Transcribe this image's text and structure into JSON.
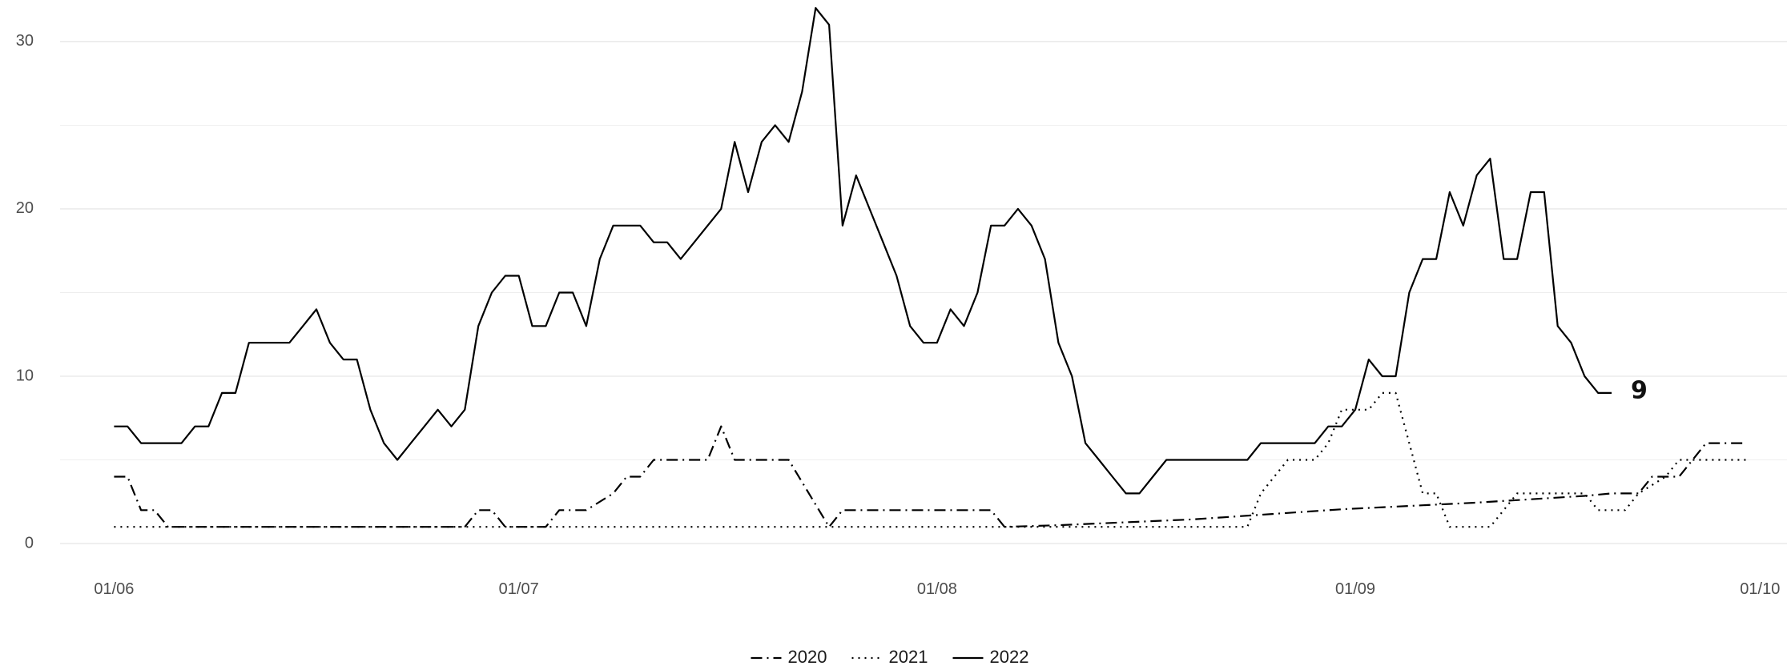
{
  "chart_data": {
    "type": "line",
    "title": "",
    "xlabel": "",
    "ylabel": "",
    "xlim": [
      "2022-05-28",
      "2022-10-03"
    ],
    "ylim": [
      -1,
      32
    ],
    "grid": true,
    "legend_position": "bottom",
    "x_ticks": [
      "2022-06-01",
      "2022-07-01",
      "2022-08-01",
      "2022-09-01",
      "2022-10-01"
    ],
    "x_tick_labels": [
      "01/06",
      "01/07",
      "01/08",
      "01/09",
      "01/10"
    ],
    "y_ticks": [
      0,
      10,
      20,
      30
    ],
    "y_tick_labels": [
      "0",
      "10",
      "20",
      "30"
    ],
    "end_label": {
      "text": "9",
      "date": "2022-09-20",
      "value": 9
    },
    "series": [
      {
        "name": "2020",
        "line_style": "dashdot",
        "color": "#000000",
        "points": [
          [
            "2022-06-01",
            4
          ],
          [
            "2022-06-02",
            4
          ],
          [
            "2022-06-03",
            2
          ],
          [
            "2022-06-04",
            2
          ],
          [
            "2022-06-05",
            1
          ],
          [
            "2022-06-27",
            1
          ],
          [
            "2022-06-28",
            2
          ],
          [
            "2022-06-29",
            2
          ],
          [
            "2022-06-30",
            1
          ],
          [
            "2022-07-03",
            1
          ],
          [
            "2022-07-04",
            2
          ],
          [
            "2022-07-06",
            2
          ],
          [
            "2022-07-08",
            3
          ],
          [
            "2022-07-09",
            4
          ],
          [
            "2022-07-10",
            4
          ],
          [
            "2022-07-11",
            5
          ],
          [
            "2022-07-15",
            5
          ],
          [
            "2022-07-16",
            7
          ],
          [
            "2022-07-17",
            5
          ],
          [
            "2022-07-21",
            5
          ],
          [
            "2022-07-24",
            1
          ],
          [
            "2022-07-25",
            2
          ],
          [
            "2022-08-05",
            2
          ],
          [
            "2022-08-06",
            1
          ],
          [
            "2022-08-10",
            1.1
          ],
          [
            "2022-08-20",
            1.45
          ],
          [
            "2022-08-31",
            2.05
          ],
          [
            "2022-09-10",
            2.45
          ],
          [
            "2022-09-18",
            2.85
          ],
          [
            "2022-09-20",
            3
          ],
          [
            "2022-09-22",
            3
          ],
          [
            "2022-09-23",
            4
          ],
          [
            "2022-09-24",
            4
          ],
          [
            "2022-09-25",
            4
          ],
          [
            "2022-09-26",
            5
          ],
          [
            "2022-09-27",
            6
          ],
          [
            "2022-09-30",
            6
          ]
        ]
      },
      {
        "name": "2021",
        "line_style": "dotted",
        "color": "#000000",
        "points": [
          [
            "2022-06-01",
            1
          ],
          [
            "2022-08-24",
            1
          ],
          [
            "2022-08-25",
            3
          ],
          [
            "2022-08-26",
            4
          ],
          [
            "2022-08-27",
            5
          ],
          [
            "2022-08-29",
            5
          ],
          [
            "2022-08-30",
            6
          ],
          [
            "2022-08-31",
            8
          ],
          [
            "2022-09-02",
            8
          ],
          [
            "2022-09-03",
            9
          ],
          [
            "2022-09-04",
            9
          ],
          [
            "2022-09-05",
            6
          ],
          [
            "2022-09-06",
            3
          ],
          [
            "2022-09-07",
            3
          ],
          [
            "2022-09-08",
            1
          ],
          [
            "2022-09-11",
            1
          ],
          [
            "2022-09-12",
            2
          ],
          [
            "2022-09-13",
            3
          ],
          [
            "2022-09-18",
            3
          ],
          [
            "2022-09-19",
            2
          ],
          [
            "2022-09-21",
            2
          ],
          [
            "2022-09-22",
            3
          ],
          [
            "2022-09-24",
            4
          ],
          [
            "2022-09-25",
            5
          ],
          [
            "2022-09-30",
            5
          ]
        ]
      },
      {
        "name": "2022",
        "line_style": "solid",
        "color": "#000000",
        "points": [
          [
            "2022-06-01",
            7
          ],
          [
            "2022-06-02",
            7
          ],
          [
            "2022-06-03",
            6
          ],
          [
            "2022-06-05",
            6
          ],
          [
            "2022-06-06",
            6
          ],
          [
            "2022-06-07",
            7
          ],
          [
            "2022-06-08",
            7
          ],
          [
            "2022-06-09",
            9
          ],
          [
            "2022-06-10",
            9
          ],
          [
            "2022-06-11",
            12
          ],
          [
            "2022-06-12",
            12
          ],
          [
            "2022-06-14",
            12
          ],
          [
            "2022-06-15",
            13
          ],
          [
            "2022-06-16",
            14
          ],
          [
            "2022-06-17",
            12
          ],
          [
            "2022-06-18",
            11
          ],
          [
            "2022-06-19",
            11
          ],
          [
            "2022-06-20",
            8
          ],
          [
            "2022-06-21",
            6
          ],
          [
            "2022-06-22",
            5
          ],
          [
            "2022-06-23",
            6
          ],
          [
            "2022-06-24",
            7
          ],
          [
            "2022-06-25",
            8
          ],
          [
            "2022-06-26",
            7
          ],
          [
            "2022-06-27",
            8
          ],
          [
            "2022-06-28",
            13
          ],
          [
            "2022-06-29",
            15
          ],
          [
            "2022-06-30",
            16
          ],
          [
            "2022-07-01",
            16
          ],
          [
            "2022-07-02",
            13
          ],
          [
            "2022-07-03",
            13
          ],
          [
            "2022-07-04",
            15
          ],
          [
            "2022-07-05",
            15
          ],
          [
            "2022-07-06",
            13
          ],
          [
            "2022-07-07",
            17
          ],
          [
            "2022-07-08",
            19
          ],
          [
            "2022-07-10",
            19
          ],
          [
            "2022-07-11",
            18
          ],
          [
            "2022-07-12",
            18
          ],
          [
            "2022-07-13",
            17
          ],
          [
            "2022-07-14",
            18
          ],
          [
            "2022-07-15",
            19
          ],
          [
            "2022-07-16",
            20
          ],
          [
            "2022-07-17",
            24
          ],
          [
            "2022-07-18",
            21
          ],
          [
            "2022-07-19",
            24
          ],
          [
            "2022-07-20",
            25
          ],
          [
            "2022-07-21",
            24
          ],
          [
            "2022-07-22",
            27
          ],
          [
            "2022-07-23",
            32
          ],
          [
            "2022-07-24",
            31
          ],
          [
            "2022-07-25",
            19
          ],
          [
            "2022-07-26",
            22
          ],
          [
            "2022-07-27",
            20
          ],
          [
            "2022-07-28",
            18
          ],
          [
            "2022-07-29",
            16
          ],
          [
            "2022-07-30",
            13
          ],
          [
            "2022-07-31",
            12
          ],
          [
            "2022-08-01",
            12
          ],
          [
            "2022-08-02",
            14
          ],
          [
            "2022-08-03",
            13
          ],
          [
            "2022-08-04",
            15
          ],
          [
            "2022-08-05",
            19
          ],
          [
            "2022-08-06",
            19
          ],
          [
            "2022-08-07",
            20
          ],
          [
            "2022-08-08",
            19
          ],
          [
            "2022-08-09",
            17
          ],
          [
            "2022-08-10",
            12
          ],
          [
            "2022-08-11",
            10
          ],
          [
            "2022-08-12",
            6
          ],
          [
            "2022-08-13",
            5
          ],
          [
            "2022-08-14",
            4
          ],
          [
            "2022-08-15",
            3
          ],
          [
            "2022-08-16",
            3
          ],
          [
            "2022-08-17",
            4
          ],
          [
            "2022-08-18",
            5
          ],
          [
            "2022-08-24",
            5
          ],
          [
            "2022-08-25",
            6
          ],
          [
            "2022-08-29",
            6
          ],
          [
            "2022-08-30",
            7
          ],
          [
            "2022-08-31",
            7
          ],
          [
            "2022-09-01",
            8
          ],
          [
            "2022-09-02",
            11
          ],
          [
            "2022-09-03",
            10
          ],
          [
            "2022-09-04",
            10
          ],
          [
            "2022-09-05",
            15
          ],
          [
            "2022-09-06",
            17
          ],
          [
            "2022-09-07",
            17
          ],
          [
            "2022-09-08",
            21
          ],
          [
            "2022-09-09",
            19
          ],
          [
            "2022-09-10",
            22
          ],
          [
            "2022-09-11",
            23
          ],
          [
            "2022-09-12",
            17
          ],
          [
            "2022-09-13",
            17
          ],
          [
            "2022-09-14",
            21
          ],
          [
            "2022-09-15",
            21
          ],
          [
            "2022-09-16",
            13
          ],
          [
            "2022-09-17",
            12
          ],
          [
            "2022-09-18",
            10
          ],
          [
            "2022-09-19",
            9
          ],
          [
            "2022-09-20",
            9
          ]
        ]
      }
    ]
  }
}
